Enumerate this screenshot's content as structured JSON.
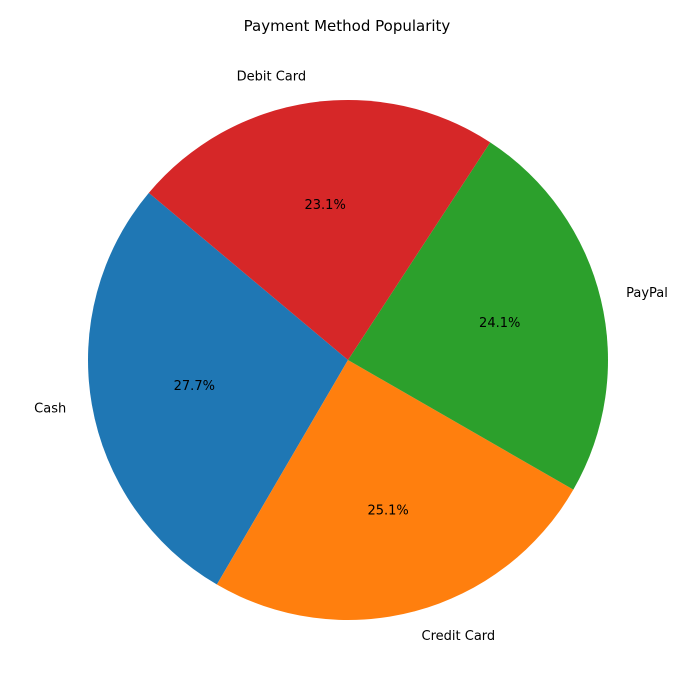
{
  "chart_data": {
    "type": "pie",
    "title": "Payment Method Popularity",
    "slices": [
      {
        "label": "Cash",
        "value": 27.7,
        "pct_label": "27.7%",
        "color": "#1f77b4"
      },
      {
        "label": "Credit Card",
        "value": 25.1,
        "pct_label": "25.1%",
        "color": "#ff7f0e"
      },
      {
        "label": "PayPal",
        "value": 24.1,
        "pct_label": "24.1%",
        "color": "#2ca02c"
      },
      {
        "label": "Debit Card",
        "value": 23.1,
        "pct_label": "23.1%",
        "color": "#d62728"
      }
    ]
  }
}
